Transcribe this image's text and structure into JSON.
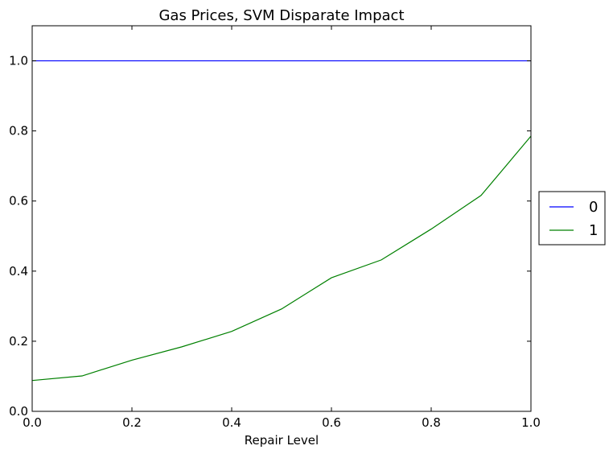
{
  "chart_data": {
    "type": "line",
    "title": "Gas Prices, SVM Disparate Impact",
    "xlabel": "Repair Level",
    "ylabel": "",
    "xlim": [
      0.0,
      1.0
    ],
    "ylim": [
      0.0,
      1.1
    ],
    "xticks": [
      "0.0",
      "0.2",
      "0.4",
      "0.6",
      "0.8",
      "1.0"
    ],
    "yticks": [
      "0.0",
      "0.2",
      "0.4",
      "0.6",
      "0.8",
      "1.0"
    ],
    "grid": false,
    "legend_position": "right-outside",
    "x": [
      0.0,
      0.1,
      0.2,
      0.3,
      0.4,
      0.5,
      0.6,
      0.7,
      0.8,
      0.9,
      1.0
    ],
    "series": [
      {
        "name": "0",
        "color": "#0000ff",
        "values": [
          1.0,
          1.0,
          1.0,
          1.0,
          1.0,
          1.0,
          1.0,
          1.0,
          1.0,
          1.0,
          1.0
        ]
      },
      {
        "name": "1",
        "color": "#008000",
        "values": [
          0.088,
          0.101,
          0.146,
          0.184,
          0.228,
          0.292,
          0.381,
          0.432,
          0.52,
          0.616,
          0.785
        ]
      }
    ]
  }
}
